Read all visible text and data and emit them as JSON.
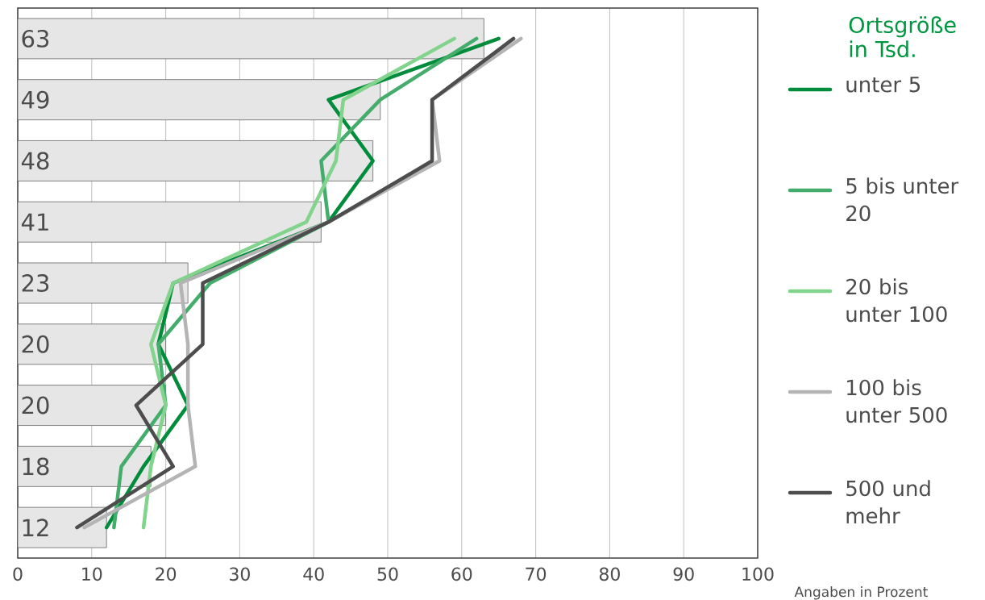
{
  "chart_data": {
    "type": "bar",
    "orientation": "horizontal",
    "legend_title": "Ortsgröße in Tsd.",
    "annotations": [
      "Angaben in Prozent"
    ],
    "categories": [
      null,
      null,
      null,
      null,
      null,
      null,
      null,
      null,
      null
    ],
    "xlim": [
      0,
      100
    ],
    "xticks": [
      0,
      10,
      20,
      30,
      40,
      50,
      60,
      70,
      80,
      90,
      100
    ],
    "grid": true,
    "legend": "right",
    "series": [
      {
        "color": "#e6e6e6",
        "values": [
          63,
          49,
          48,
          41,
          23,
          20,
          20,
          18,
          12
        ],
        "value_labels": [
          "63",
          "49",
          "48",
          "41",
          "23",
          "20",
          "20",
          "18",
          "12"
        ]
      },
      {
        "type": "line",
        "name": "unter 5",
        "color": "#008c3a",
        "values": [
          65,
          42,
          48,
          42,
          21,
          19,
          23,
          17,
          12
        ]
      },
      {
        "type": "line",
        "name": "5 bis unter 20",
        "color": "#45ad6c",
        "values": [
          62,
          49,
          41,
          42,
          26,
          19,
          20,
          14,
          13
        ]
      },
      {
        "type": "line",
        "name": "20 bis unter 100",
        "color": "#82d38c",
        "values": [
          59,
          44,
          43,
          39,
          21,
          18,
          20,
          18,
          17
        ]
      },
      {
        "type": "line",
        "name": "100 bis unter 500",
        "color": "#b4b4b4",
        "values": [
          68,
          56,
          57,
          42,
          22,
          23,
          23,
          24,
          9
        ]
      },
      {
        "type": "line",
        "name": "500 und mehr",
        "color": "#4d4d4d",
        "values": [
          67,
          56,
          56,
          42,
          25,
          25,
          16,
          21,
          8
        ]
      }
    ]
  }
}
